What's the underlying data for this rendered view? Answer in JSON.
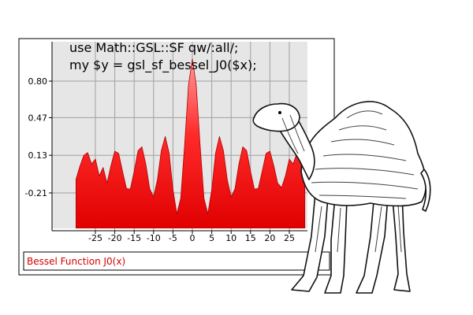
{
  "code": {
    "line1": "use Math::GSL::SF qw/:all/;",
    "line2": "my $y = gsl_sf_bessel_J0($x);"
  },
  "legend": {
    "label": "Bessel Function J0(x)"
  },
  "colors": {
    "plot_bg": "#e6e6e6",
    "grid": "#a0a0a0",
    "fill_top": "#ff8080",
    "fill_bottom": "#e00000",
    "legend_text": "#d40000"
  },
  "chart_data": {
    "type": "area",
    "function": "J0(x)",
    "xrange": [
      -30,
      29
    ],
    "ylim": [
      -0.4,
      0.95
    ],
    "xticks": [
      -25,
      -20,
      -15,
      -10,
      -5,
      0,
      5,
      10,
      15,
      20,
      25
    ],
    "yticks": [
      0.8,
      0.47,
      0.13,
      -0.21
    ],
    "ytick_labels": [
      "0.80",
      "0.47",
      "0.13",
      "-0.21"
    ],
    "legend": [
      "Bessel Function J0(x)"
    ],
    "grid": true,
    "x": [
      -30,
      -29,
      -28,
      -27,
      -26,
      -25,
      -24,
      -23,
      -22,
      -21,
      -20,
      -19,
      -18,
      -17,
      -16,
      -15,
      -14,
      -13,
      -12,
      -11,
      -10,
      -9,
      -8,
      -7,
      -6,
      -5,
      -4,
      -3,
      -2,
      -1,
      0,
      1,
      2,
      3,
      4,
      5,
      6,
      7,
      8,
      9,
      10,
      11,
      12,
      13,
      14,
      15,
      16,
      17,
      18,
      19,
      20,
      21,
      22,
      23,
      24,
      25,
      26,
      27,
      28,
      29
    ],
    "y": [
      -0.086,
      0.03,
      0.128,
      0.154,
      0.051,
      0.096,
      -0.056,
      0.02,
      -0.121,
      0.037,
      0.167,
      0.147,
      -0.013,
      -0.17,
      -0.175,
      -0.014,
      0.171,
      0.207,
      0.048,
      -0.171,
      -0.246,
      -0.09,
      0.172,
      0.3,
      0.151,
      -0.178,
      -0.397,
      -0.26,
      0.224,
      0.765,
      1.0,
      0.765,
      0.224,
      -0.26,
      -0.397,
      -0.178,
      0.151,
      0.3,
      0.172,
      -0.09,
      -0.246,
      -0.171,
      0.048,
      0.207,
      0.171,
      -0.014,
      -0.175,
      -0.17,
      -0.013,
      0.147,
      0.167,
      0.037,
      -0.121,
      -0.162,
      -0.056,
      0.096,
      0.051,
      0.154,
      0.128,
      0.03
    ]
  }
}
